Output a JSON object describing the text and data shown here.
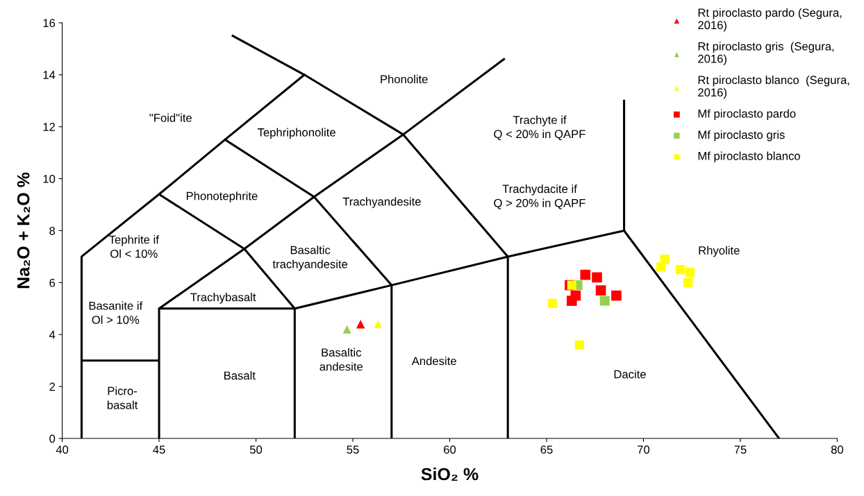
{
  "chart_data": {
    "type": "scatter",
    "xlabel": "SiO₂ %",
    "ylabel": "Na₂O + K₂O %",
    "xlim": [
      40,
      80
    ],
    "xticks": [
      40,
      45,
      50,
      55,
      60,
      65,
      70,
      75,
      80
    ],
    "ylim": [
      0,
      16
    ],
    "yticks": [
      0,
      2,
      4,
      6,
      8,
      10,
      12,
      14,
      16
    ],
    "grid": false,
    "legend": "top right",
    "series": [
      {
        "type": "line",
        "color": "#000000",
        "marker": "none",
        "x": [
          41,
          41,
          45,
          48.4,
          52.5,
          null,
          48.8,
          52.5,
          57.6,
          63,
          null,
          57.6,
          62.8,
          null,
          41,
          45,
          null,
          45,
          45,
          52,
          52,
          null,
          45,
          49.4,
          53,
          57.6,
          null,
          45,
          49.4,
          52,
          null,
          48.4,
          53,
          57,
          57,
          null,
          52,
          57,
          63,
          69,
          69,
          null,
          63,
          63,
          null,
          69,
          77
        ],
        "values": [
          0,
          7,
          9.4,
          11.5,
          14,
          null,
          15.5,
          14,
          11.7,
          7,
          null,
          11.7,
          14.6,
          null,
          3,
          3,
          null,
          0,
          5,
          5,
          0,
          null,
          5,
          7.3,
          9.3,
          11.7,
          null,
          9.4,
          7.3,
          5,
          null,
          11.5,
          9.3,
          5.9,
          0,
          null,
          5,
          5.9,
          7,
          8,
          13,
          null,
          0,
          7,
          null,
          8,
          0
        ]
      },
      {
        "name": "Rt piroclasto pardo (Segura,\n2016)",
        "color": "#ff0000",
        "marker": "triangle",
        "x": [
          55.4
        ],
        "values": [
          4.4
        ]
      },
      {
        "name": "Rt piroclasto gris  (Segura,\n2016)",
        "color": "#92d050",
        "marker": "triangle",
        "x": [
          54.7
        ],
        "values": [
          4.2
        ]
      },
      {
        "name": "Rt piroclasto blanco  (Segura,\n2016)",
        "color": "#ffff00",
        "marker": "triangle",
        "x": [
          56.3
        ],
        "values": [
          4.4
        ]
      },
      {
        "name": "Mf piroclasto pardo",
        "color": "#ff0000",
        "marker": "square",
        "x": [
          66.2,
          67.0,
          67.6,
          66.5,
          66.3,
          67.8,
          68.6
        ],
        "values": [
          5.9,
          6.3,
          6.2,
          5.5,
          5.3,
          5.7,
          5.5
        ]
      },
      {
        "name": "Mf piroclasto gris",
        "color": "#92d050",
        "marker": "square",
        "x": [
          66.6,
          68.0
        ],
        "values": [
          5.9,
          5.3
        ]
      },
      {
        "name": "Mf piroclasto blanco",
        "color": "#ffff00",
        "marker": "square",
        "x": [
          66.3,
          65.3,
          66.7,
          71.1,
          70.9,
          71.9,
          72.4,
          72.3
        ],
        "values": [
          5.9,
          5.2,
          3.6,
          6.9,
          6.6,
          6.5,
          6.4,
          6.0
        ]
      }
    ],
    "annotations": [
      "Phonolite",
      "\"Foid\"ite",
      "Tephriphonolite",
      "Trachyte if\nQ < 20% in QAPF",
      "Phonotephrite",
      "Trachyandesite",
      "Trachydacite if\nQ > 20% in QAPF",
      "Tephrite if\nOl < 10%",
      "Basaltic\ntrachyandesite",
      "Rhyolite",
      "Trachybasalt",
      "Basanite if\nOl > 10%",
      "Basaltic\nandesite",
      "Andesite",
      "Dacite",
      "Basalt",
      "Picro-\nbasalt"
    ]
  }
}
